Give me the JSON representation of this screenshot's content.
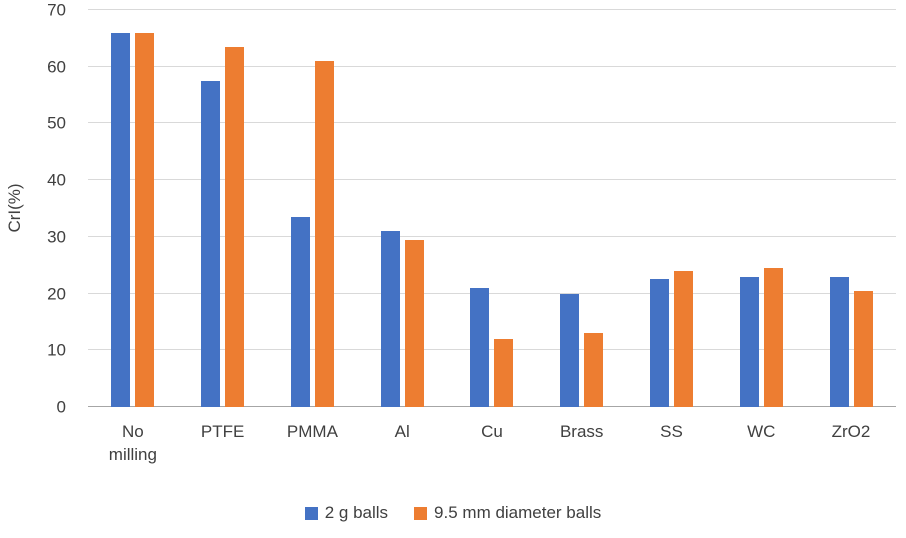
{
  "chart_data": {
    "type": "bar",
    "title": "",
    "xlabel": "",
    "ylabel": "CrI(%)",
    "ylim": [
      0,
      70
    ],
    "ytick_step": 10,
    "grid": true,
    "legend_position": "bottom",
    "categories": [
      "No milling",
      "PTFE",
      "PMMA",
      "Al",
      "Cu",
      "Brass",
      "SS",
      "WC",
      "ZrO2"
    ],
    "series": [
      {
        "name": "2 g balls",
        "color": "#4472C4",
        "values": [
          66,
          57.5,
          33.5,
          31,
          21,
          20,
          22.5,
          23,
          23
        ]
      },
      {
        "name": "9.5 mm diameter balls",
        "color": "#ED7D31",
        "values": [
          66,
          63.5,
          61,
          29.5,
          12,
          13,
          24,
          24.5,
          20.5
        ]
      }
    ]
  },
  "colors": {
    "gridline": "#d9d9d9",
    "axis_line": "#a6a6a6",
    "text": "#404040"
  }
}
